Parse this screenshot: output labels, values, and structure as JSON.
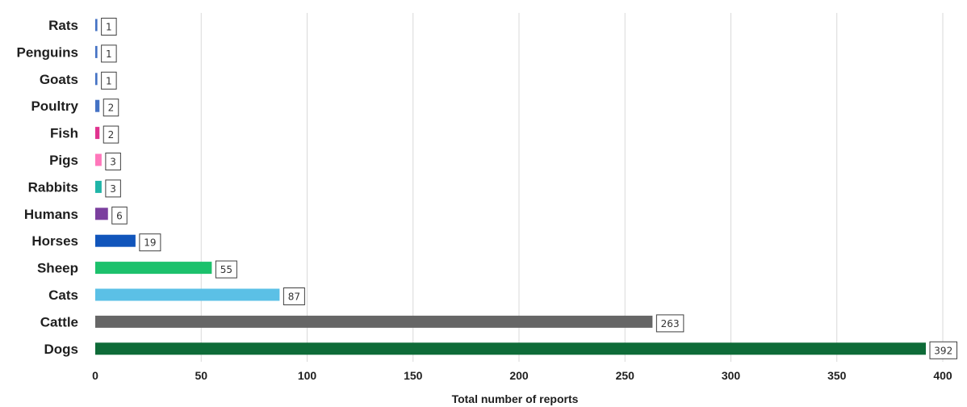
{
  "chart_data": {
    "type": "bar",
    "orientation": "horizontal",
    "xlabel": "Total number of reports",
    "ylabel": "",
    "xlim": [
      0,
      400
    ],
    "xticks": [
      0,
      50,
      100,
      150,
      200,
      250,
      300,
      350,
      400
    ],
    "grid": "vertical",
    "legend": "none",
    "categories": [
      "Rats",
      "Penguins",
      "Goats",
      "Poultry",
      "Fish",
      "Pigs",
      "Rabbits",
      "Humans",
      "Horses",
      "Sheep",
      "Cats",
      "Cattle",
      "Dogs"
    ],
    "values": [
      1,
      1,
      1,
      2,
      2,
      3,
      3,
      6,
      19,
      55,
      87,
      263,
      392
    ],
    "colors": [
      "#4472c4",
      "#4472c4",
      "#4472c4",
      "#4472c4",
      "#e0338f",
      "#ff77bb",
      "#1fb5a8",
      "#7b3f9e",
      "#1155bb",
      "#1cc16c",
      "#5bc0e6",
      "#666666",
      "#0e6b38"
    ]
  }
}
